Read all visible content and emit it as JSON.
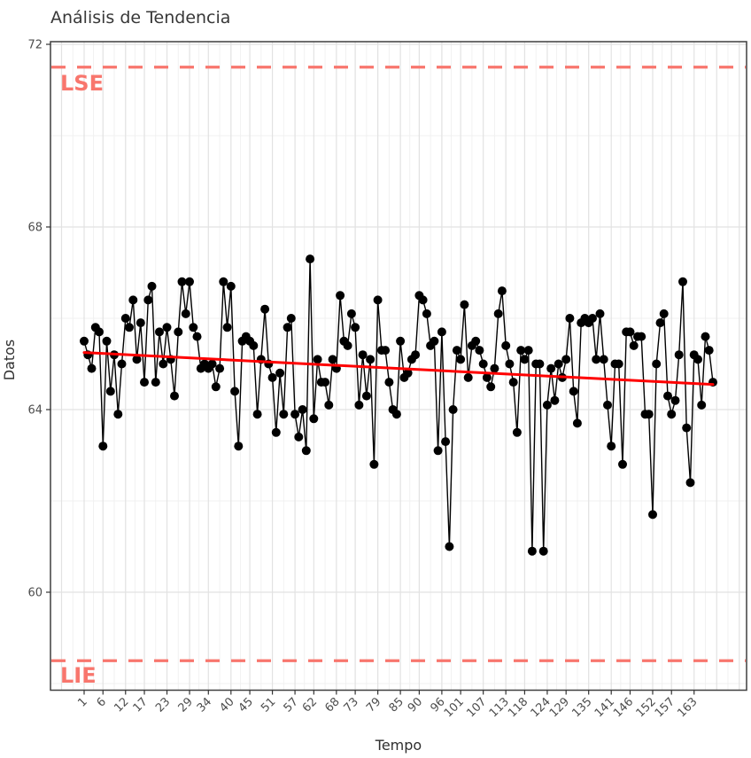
{
  "chart_data": {
    "type": "line",
    "title": "Análisis de Tendencia",
    "xlabel": "Tempo",
    "ylabel": "Datos",
    "x_start": 1,
    "x_ticks": [
      1,
      6,
      12,
      17,
      23,
      29,
      34,
      40,
      45,
      51,
      57,
      62,
      68,
      73,
      79,
      85,
      90,
      96,
      101,
      107,
      113,
      118,
      124,
      129,
      135,
      141,
      146,
      152,
      157,
      163
    ],
    "y_ticks": [
      60,
      64,
      68,
      72
    ],
    "y_minor_ticks": [
      58,
      62,
      66,
      70
    ],
    "ylim": [
      57.9,
      72.05
    ],
    "grid": true,
    "legend": "none",
    "values": [
      65.5,
      65.2,
      64.9,
      65.8,
      65.7,
      63.2,
      65.5,
      64.4,
      65.2,
      63.9,
      65.0,
      66.0,
      65.8,
      66.4,
      65.1,
      65.9,
      64.6,
      66.4,
      66.7,
      64.6,
      65.7,
      65.0,
      65.8,
      65.1,
      64.3,
      65.7,
      66.8,
      66.1,
      66.8,
      65.8,
      65.6,
      64.9,
      65.0,
      64.9,
      65.0,
      64.5,
      64.9,
      66.8,
      65.8,
      66.7,
      64.4,
      63.2,
      65.5,
      65.6,
      65.5,
      65.4,
      63.9,
      65.1,
      66.2,
      65.0,
      64.7,
      63.5,
      64.8,
      63.9,
      65.8,
      66.0,
      63.9,
      63.4,
      64.0,
      63.1,
      67.3,
      63.8,
      65.1,
      64.6,
      64.6,
      64.1,
      65.1,
      64.9,
      66.5,
      65.5,
      65.4,
      66.1,
      65.8,
      64.1,
      65.2,
      64.3,
      65.1,
      62.8,
      66.4,
      65.3,
      65.3,
      64.6,
      64.0,
      63.9,
      65.5,
      64.7,
      64.8,
      65.1,
      65.2,
      66.5,
      66.4,
      66.1,
      65.4,
      65.5,
      63.1,
      65.7,
      63.3,
      61.0,
      64.0,
      65.3,
      65.1,
      66.3,
      64.7,
      65.4,
      65.5,
      65.3,
      65.0,
      64.7,
      64.5,
      64.9,
      66.1,
      66.6,
      65.4,
      65.0,
      64.6,
      63.5,
      65.3,
      65.1,
      65.3,
      60.9,
      65.0,
      65.0,
      60.9,
      64.1,
      64.9,
      64.2,
      65.0,
      64.7,
      65.1,
      66.0,
      64.4,
      63.7,
      65.9,
      66.0,
      65.9,
      66.0,
      65.1,
      66.1,
      65.1,
      64.1,
      63.2,
      65.0,
      65.0,
      62.8,
      65.7,
      65.7,
      65.4,
      65.6,
      65.6,
      63.9,
      63.9,
      61.7,
      65.0,
      65.9,
      66.1,
      64.3,
      63.9,
      64.2,
      65.2,
      66.8,
      63.6,
      62.4,
      65.2,
      65.1,
      64.1,
      65.6,
      65.3,
      64.6
    ],
    "trend_line": {
      "name": "tendencia",
      "color": "#FF0000",
      "start_value": 65.25,
      "end_value": 64.55
    },
    "limits": [
      {
        "label": "LSE",
        "value": 71.5,
        "color": "#F8766D",
        "style": "dashed"
      },
      {
        "label": "LIE",
        "value": 58.5,
        "color": "#F8766D",
        "style": "dashed"
      }
    ],
    "series_color": "#000000"
  },
  "theme": {
    "background": "#FFFFFF",
    "panel_border": "#3f3f3f",
    "grid_major": "#E2E2E2",
    "grid_minor": "#F0F0F0",
    "axis_text": "#4d4d4d",
    "title_text": "#383838"
  }
}
